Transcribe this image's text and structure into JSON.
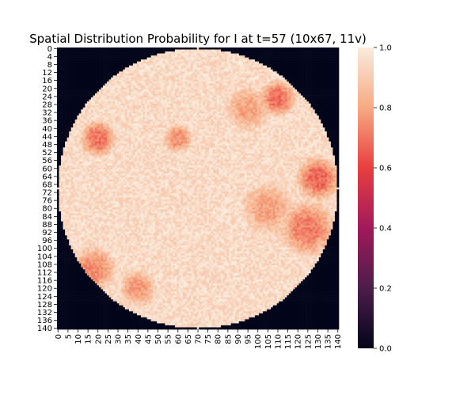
{
  "chart_data": {
    "type": "heatmap",
    "title": "Spatial Distribution Probability for I at t=57 (10x67, 11v)",
    "xlabel": "",
    "ylabel": "",
    "grid_size": 141,
    "x_ticks": [
      0,
      5,
      10,
      15,
      20,
      25,
      30,
      35,
      40,
      45,
      50,
      55,
      60,
      65,
      70,
      75,
      80,
      85,
      90,
      95,
      100,
      105,
      110,
      115,
      120,
      125,
      130,
      135,
      140
    ],
    "y_ticks": [
      0,
      4,
      8,
      12,
      16,
      20,
      24,
      28,
      32,
      36,
      40,
      44,
      48,
      52,
      56,
      60,
      64,
      68,
      72,
      76,
      80,
      84,
      88,
      92,
      96,
      100,
      104,
      108,
      112,
      116,
      120,
      124,
      128,
      132,
      136,
      140
    ],
    "colorbar": {
      "min": 0.0,
      "max": 1.0,
      "ticks": [
        "0.0",
        "0.2",
        "0.4",
        "0.6",
        "0.8",
        "1.0"
      ],
      "colormap": "rocket"
    },
    "domain": {
      "shape": "circle",
      "center": [
        70,
        70
      ],
      "radius": 70,
      "value_outside": 0.0
    },
    "regions": [
      {
        "name": "background",
        "value": 0.95
      },
      {
        "cx": 20,
        "cy": 45,
        "r": 10,
        "value": 0.7
      },
      {
        "cx": 18,
        "cy": 110,
        "r": 12,
        "value": 0.75
      },
      {
        "cx": 130,
        "cy": 65,
        "r": 12,
        "value": 0.68
      },
      {
        "cx": 125,
        "cy": 90,
        "r": 15,
        "value": 0.72
      },
      {
        "cx": 110,
        "cy": 25,
        "r": 10,
        "value": 0.7
      },
      {
        "cx": 60,
        "cy": 45,
        "r": 8,
        "value": 0.75
      },
      {
        "cx": 95,
        "cy": 30,
        "r": 12,
        "value": 0.8
      },
      {
        "cx": 40,
        "cy": 120,
        "r": 10,
        "value": 0.78
      },
      {
        "cx": 105,
        "cy": 80,
        "r": 14,
        "value": 0.8
      }
    ]
  }
}
